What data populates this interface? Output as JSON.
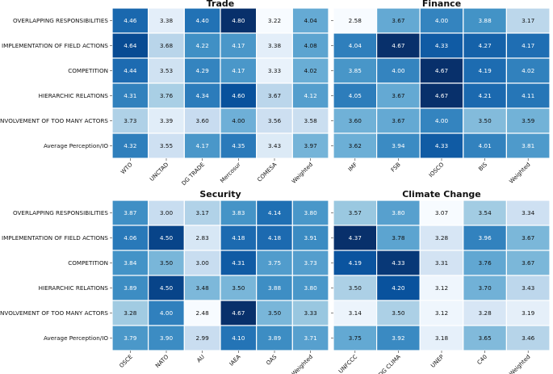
{
  "chart_data": [
    {
      "type": "heatmap",
      "title": "Trade",
      "rows": [
        "OVERLAPPING RESPONSIBILITIES",
        "IMPLEMENTATION OF FIELD ACTIONS",
        "COMPETITION",
        "HIERARCHIC RELATIONS",
        "INVOLVEMENT OF TOO MANY ACTORS",
        "Average Perception/IO"
      ],
      "columns": [
        "WTO",
        "UNCTAD",
        "DG TRADE",
        "Mercosur",
        "COMESA",
        "Weighted"
      ],
      "values": [
        [
          4.46,
          3.38,
          4.4,
          4.8,
          3.22,
          4.04
        ],
        [
          4.64,
          3.68,
          4.22,
          4.17,
          3.38,
          4.08
        ],
        [
          4.44,
          3.53,
          4.29,
          4.17,
          3.33,
          4.02
        ],
        [
          4.31,
          3.76,
          4.34,
          4.6,
          3.67,
          4.12
        ],
        [
          3.73,
          3.39,
          3.6,
          4.0,
          3.56,
          3.58
        ],
        [
          4.32,
          3.55,
          4.17,
          4.35,
          3.43,
          3.97
        ]
      ]
    },
    {
      "type": "heatmap",
      "title": "Finance",
      "rows": [
        "OVERLAPPING RESPONSIBILITIES",
        "IMPLEMENTATION OF FIELD ACTIONS",
        "COMPETITION",
        "HIERARCHIC RELATIONS",
        "INVOLVEMENT OF TOO MANY ACTORS",
        "Average Perception/IO"
      ],
      "columns": [
        "IMF",
        "FSB",
        "IOSCO",
        "BIS",
        "Weighted"
      ],
      "values": [
        [
          2.58,
          3.67,
          4.0,
          3.88,
          3.17
        ],
        [
          4.04,
          4.67,
          4.33,
          4.27,
          4.17
        ],
        [
          3.85,
          4.0,
          4.67,
          4.19,
          4.02
        ],
        [
          4.05,
          3.67,
          4.67,
          4.21,
          4.11
        ],
        [
          3.6,
          3.67,
          4.0,
          3.5,
          3.59
        ],
        [
          3.62,
          3.94,
          4.33,
          4.01,
          3.81
        ]
      ]
    },
    {
      "type": "heatmap",
      "title": "Security",
      "rows": [
        "OVERLAPPING RESPONSIBILITIES",
        "IMPLEMENTATION OF FIELD ACTIONS",
        "COMPETITION",
        "HIERARCHIC RELATIONS",
        "INVOLVEMENT OF TOO MANY ACTORS",
        "Average Perception/IO"
      ],
      "columns": [
        "OSCE",
        "NATO",
        "AU",
        "IAEA",
        "OAS",
        "Weighted"
      ],
      "values": [
        [
          3.87,
          3.0,
          3.17,
          3.83,
          4.14,
          3.8
        ],
        [
          4.06,
          4.5,
          2.83,
          4.18,
          4.18,
          3.91
        ],
        [
          3.84,
          3.5,
          3.0,
          4.31,
          3.75,
          3.73
        ],
        [
          3.89,
          4.5,
          3.48,
          3.5,
          3.88,
          3.8
        ],
        [
          3.28,
          4.0,
          2.48,
          4.67,
          3.5,
          3.33
        ],
        [
          3.79,
          3.9,
          2.99,
          4.1,
          3.89,
          3.71
        ]
      ]
    },
    {
      "type": "heatmap",
      "title": "Climate Change",
      "rows": [
        "OVERLAPPING RESPONSIBILITIES",
        "IMPLEMENTATION OF FIELD ACTIONS",
        "COMPETITION",
        "HIERARCHIC RELATIONS",
        "INVOLVEMENT OF TOO MANY ACTORS",
        "Average Perception/IO"
      ],
      "columns": [
        "UNFCCC",
        "DG CLIMA",
        "UNEP",
        "C40",
        "Weighted"
      ],
      "values": [
        [
          3.57,
          3.8,
          3.07,
          3.54,
          3.34
        ],
        [
          4.37,
          3.78,
          3.28,
          3.96,
          3.67
        ],
        [
          4.19,
          4.33,
          3.31,
          3.76,
          3.67
        ],
        [
          3.5,
          4.2,
          3.12,
          3.7,
          3.43
        ],
        [
          3.14,
          3.5,
          3.12,
          3.28,
          3.19
        ],
        [
          3.75,
          3.92,
          3.18,
          3.65,
          3.46
        ]
      ]
    }
  ]
}
